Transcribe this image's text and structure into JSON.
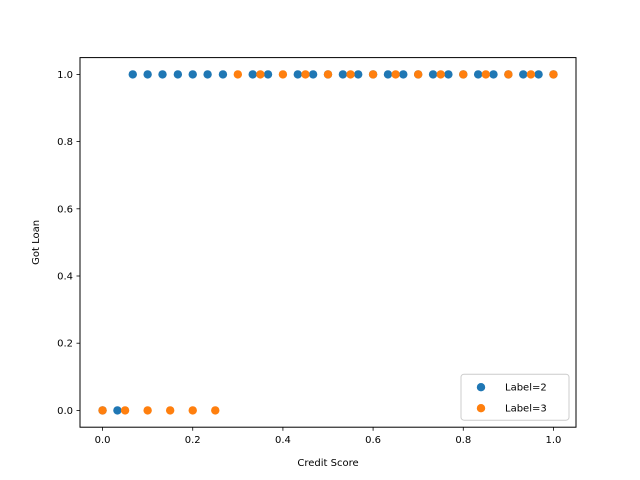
{
  "chart_data": {
    "type": "scatter",
    "title": "",
    "xlabel": "Credit Score",
    "ylabel": "Got Loan",
    "xlim": [
      -0.05,
      1.05
    ],
    "ylim": [
      -0.05,
      1.05
    ],
    "xticks": [
      0.0,
      0.2,
      0.4,
      0.6,
      0.8,
      1.0
    ],
    "yticks": [
      0.0,
      0.2,
      0.4,
      0.6,
      0.8,
      1.0
    ],
    "xtick_labels": [
      "0.0",
      "0.2",
      "0.4",
      "0.6",
      "0.8",
      "1.0"
    ],
    "ytick_labels": [
      "0.0",
      "0.2",
      "0.4",
      "0.6",
      "0.8",
      "1.0"
    ],
    "grid": false,
    "legend_position": "lower-right",
    "series": [
      {
        "name": "Label=2",
        "color": "#1f77b4",
        "points": [
          [
            0.0,
            0
          ],
          [
            0.033,
            0
          ],
          [
            0.067,
            1
          ],
          [
            0.1,
            1
          ],
          [
            0.133,
            1
          ],
          [
            0.167,
            1
          ],
          [
            0.2,
            1
          ],
          [
            0.233,
            1
          ],
          [
            0.267,
            1
          ],
          [
            0.333,
            1
          ],
          [
            0.367,
            1
          ],
          [
            0.433,
            1
          ],
          [
            0.467,
            1
          ],
          [
            0.5,
            1
          ],
          [
            0.533,
            1
          ],
          [
            0.567,
            1
          ],
          [
            0.6,
            1
          ],
          [
            0.633,
            1
          ],
          [
            0.667,
            1
          ],
          [
            0.7,
            1
          ],
          [
            0.733,
            1
          ],
          [
            0.767,
            1
          ],
          [
            0.8,
            1
          ],
          [
            0.833,
            1
          ],
          [
            0.867,
            1
          ],
          [
            0.9,
            1
          ],
          [
            0.933,
            1
          ],
          [
            0.967,
            1
          ],
          [
            1.0,
            1
          ]
        ]
      },
      {
        "name": "Label=3",
        "color": "#ff7f0e",
        "points": [
          [
            0.0,
            0
          ],
          [
            0.05,
            0
          ],
          [
            0.1,
            0
          ],
          [
            0.15,
            0
          ],
          [
            0.2,
            0
          ],
          [
            0.25,
            0
          ],
          [
            0.3,
            1
          ],
          [
            0.35,
            1
          ],
          [
            0.4,
            1
          ],
          [
            0.45,
            1
          ],
          [
            0.5,
            1
          ],
          [
            0.55,
            1
          ],
          [
            0.6,
            1
          ],
          [
            0.65,
            1
          ],
          [
            0.7,
            1
          ],
          [
            0.75,
            1
          ],
          [
            0.8,
            1
          ],
          [
            0.85,
            1
          ],
          [
            0.9,
            1
          ],
          [
            0.95,
            1
          ],
          [
            1.0,
            1
          ]
        ]
      }
    ]
  }
}
